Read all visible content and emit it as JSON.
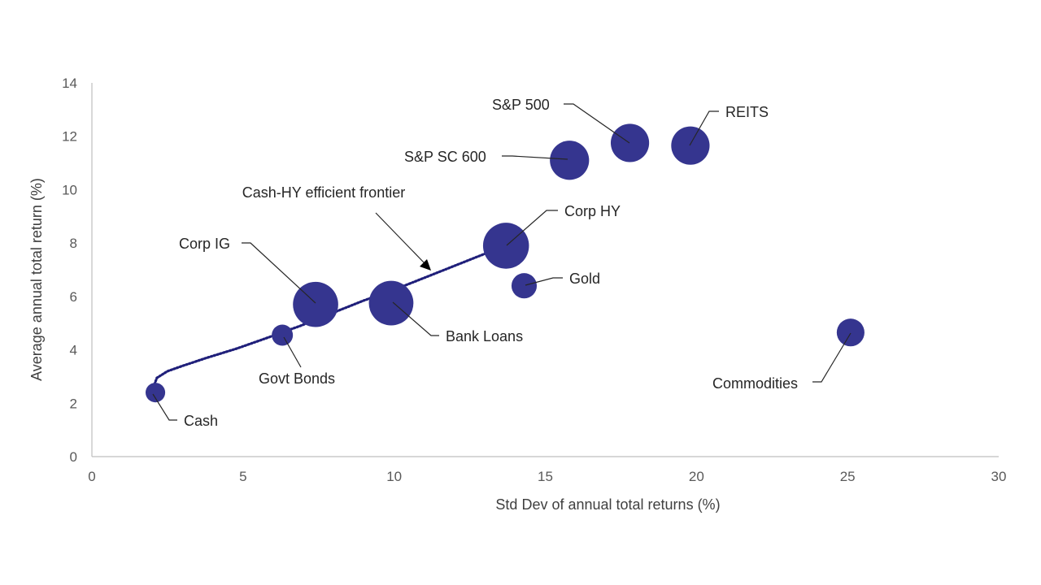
{
  "chart_data": {
    "type": "scatter",
    "title": "",
    "xlabel": "Std Dev of annual total returns (%)",
    "ylabel": "Average annual total return (%)",
    "xlim": [
      0,
      30
    ],
    "ylim": [
      0,
      14
    ],
    "x_ticks": [
      "0",
      "5",
      "10",
      "15",
      "20",
      "25",
      "30"
    ],
    "y_ticks": [
      "0",
      "2",
      "4",
      "6",
      "8",
      "10",
      "12",
      "14"
    ],
    "grid": false,
    "marker_color": "#35358f",
    "points": [
      {
        "label": "Cash",
        "x": 2.1,
        "y": 2.4,
        "size": 0.3
      },
      {
        "label": "Govt Bonds",
        "x": 6.3,
        "y": 4.55,
        "size": 0.35
      },
      {
        "label": "Corp IG",
        "x": 7.4,
        "y": 5.7,
        "size": 1.6
      },
      {
        "label": "Bank Loans",
        "x": 9.9,
        "y": 5.75,
        "size": 1.55
      },
      {
        "label": "Corp HY",
        "x": 13.7,
        "y": 7.9,
        "size": 1.65
      },
      {
        "label": "Gold",
        "x": 14.3,
        "y": 6.4,
        "size": 0.5
      },
      {
        "label": "S&P SC 600",
        "x": 15.8,
        "y": 11.1,
        "size": 1.2
      },
      {
        "label": "S&P 500",
        "x": 17.8,
        "y": 11.75,
        "size": 1.15
      },
      {
        "label": "REITS",
        "x": 19.8,
        "y": 11.65,
        "size": 1.15
      },
      {
        "label": "Commodities",
        "x": 25.1,
        "y": 4.65,
        "size": 0.6
      }
    ],
    "frontier": {
      "label": "Cash-HY efficient frontier",
      "color": "#1f1f7a",
      "x": [
        2.2,
        2.05,
        2.15,
        2.5,
        3.0,
        3.8,
        4.8,
        5.8,
        6.9,
        8.0,
        9.0,
        10.0,
        11.0,
        12.0,
        13.0,
        13.8
      ],
      "y": [
        2.4,
        2.65,
        2.95,
        3.2,
        3.4,
        3.7,
        4.05,
        4.45,
        4.9,
        5.4,
        5.85,
        6.25,
        6.7,
        7.15,
        7.6,
        7.95
      ]
    }
  }
}
